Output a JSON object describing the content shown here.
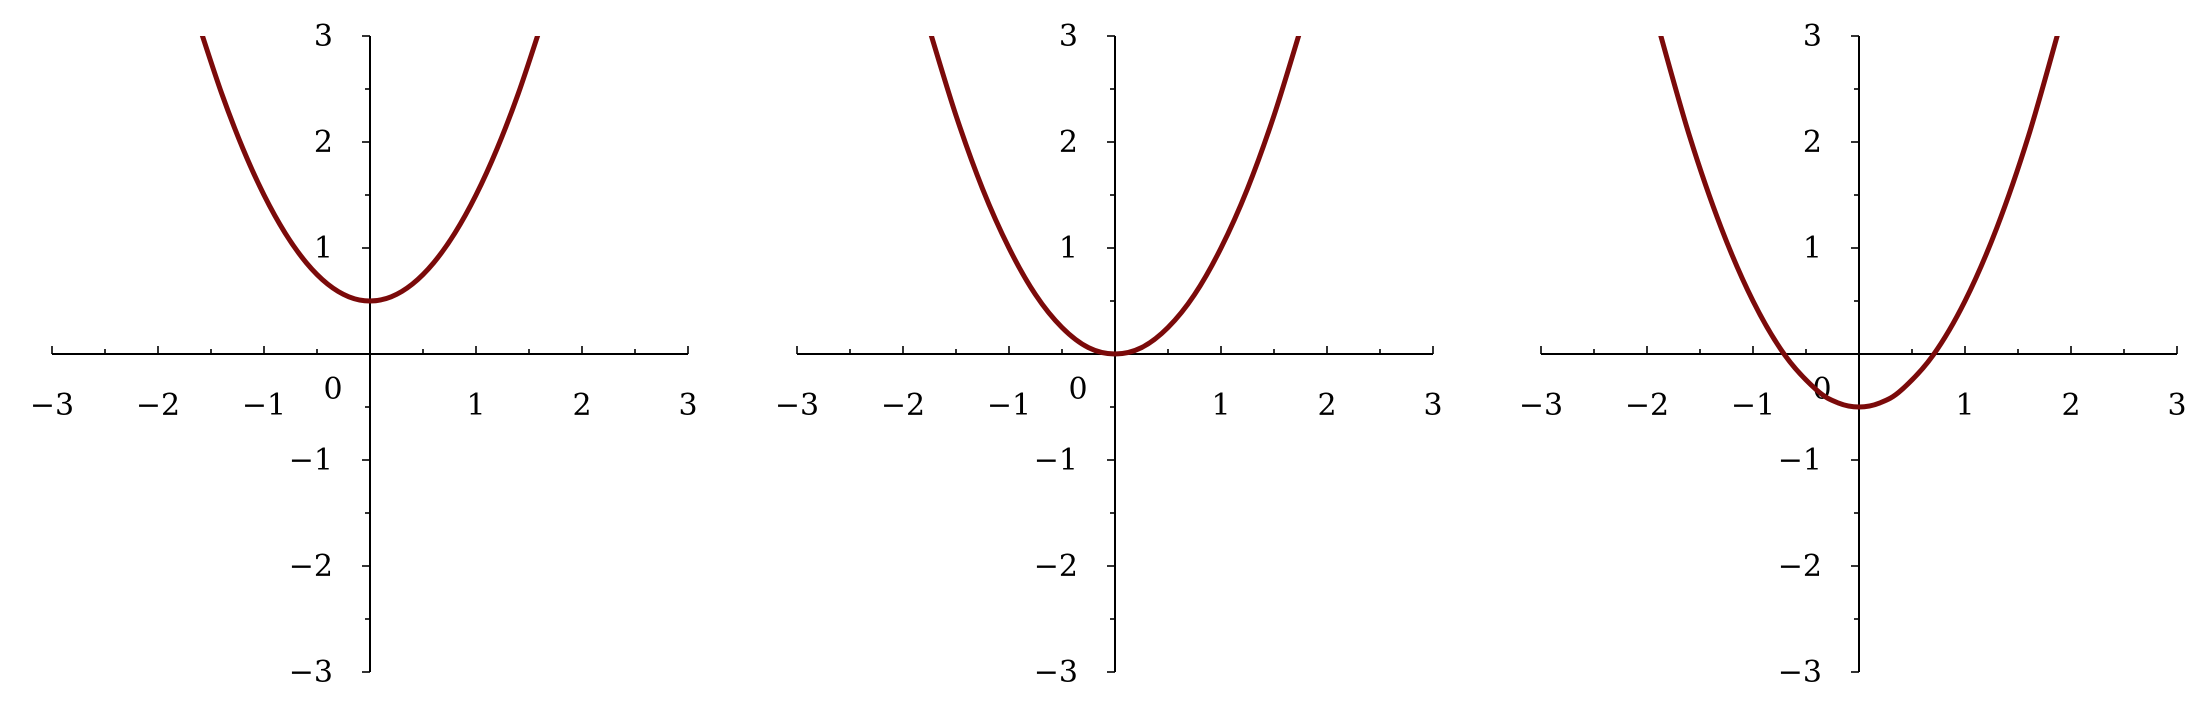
{
  "curve_color": "#7b0a0a",
  "axis_color": "#000000",
  "chart_data": [
    {
      "type": "line",
      "title": "",
      "xlabel": "",
      "ylabel": "",
      "xlim": [
        -3,
        3
      ],
      "ylim": [
        -3,
        3
      ],
      "grid": false,
      "legend": "none",
      "x_tick_labels": [
        "−3",
        "−2",
        "−1",
        "1",
        "2",
        "3"
      ],
      "y_tick_labels": [
        "3",
        "2",
        "1",
        "−1",
        "−2",
        "−3"
      ],
      "origin_label": "0",
      "series": [
        {
          "x": [
            -1.6,
            -1.4,
            -1.2,
            -1.0,
            -0.8,
            -0.6,
            -0.4,
            -0.2,
            0.0,
            0.2,
            0.4,
            0.6,
            0.8,
            1.0,
            1.2,
            1.4,
            1.6
          ],
          "y": [
            3.06,
            2.46,
            1.94,
            1.5,
            1.14,
            0.86,
            0.66,
            0.54,
            0.5,
            0.54,
            0.66,
            0.86,
            1.14,
            1.5,
            1.94,
            2.46,
            3.06
          ]
        }
      ]
    },
    {
      "type": "line",
      "title": "",
      "xlabel": "",
      "ylabel": "",
      "xlim": [
        -3,
        3
      ],
      "ylim": [
        -3,
        3
      ],
      "grid": false,
      "legend": "none",
      "x_tick_labels": [
        "−3",
        "−2",
        "−1",
        "1",
        "2",
        "3"
      ],
      "y_tick_labels": [
        "3",
        "2",
        "1",
        "−1",
        "−2",
        "−3"
      ],
      "origin_label": "0",
      "series": [
        {
          "x": [
            -1.75,
            -1.5,
            -1.25,
            -1.0,
            -0.75,
            -0.5,
            -0.25,
            0.0,
            0.25,
            0.5,
            0.75,
            1.0,
            1.25,
            1.5,
            1.75
          ],
          "y": [
            3.06,
            2.25,
            1.56,
            1.0,
            0.56,
            0.25,
            0.06,
            0.0,
            0.06,
            0.25,
            0.56,
            1.0,
            1.56,
            2.25,
            3.06
          ]
        }
      ]
    },
    {
      "type": "line",
      "title": "",
      "xlabel": "",
      "ylabel": "",
      "xlim": [
        -3,
        3
      ],
      "ylim": [
        -3,
        3
      ],
      "grid": false,
      "legend": "none",
      "x_tick_labels": [
        "−3",
        "−2",
        "−1",
        "1",
        "2",
        "3"
      ],
      "y_tick_labels": [
        "3",
        "2",
        "1",
        "−1",
        "−2",
        "−3"
      ],
      "origin_label": "0",
      "series": [
        {
          "x": [
            -1.9,
            -1.6,
            -1.3,
            -1.0,
            -0.7,
            -0.4,
            -0.2,
            0.0,
            0.2,
            0.4,
            0.7,
            1.0,
            1.3,
            1.6,
            1.9
          ],
          "y": [
            3.11,
            2.06,
            1.19,
            0.5,
            -0.01,
            -0.34,
            -0.46,
            -0.5,
            -0.46,
            -0.34,
            -0.01,
            0.5,
            1.19,
            2.06,
            3.11
          ]
        }
      ]
    }
  ]
}
